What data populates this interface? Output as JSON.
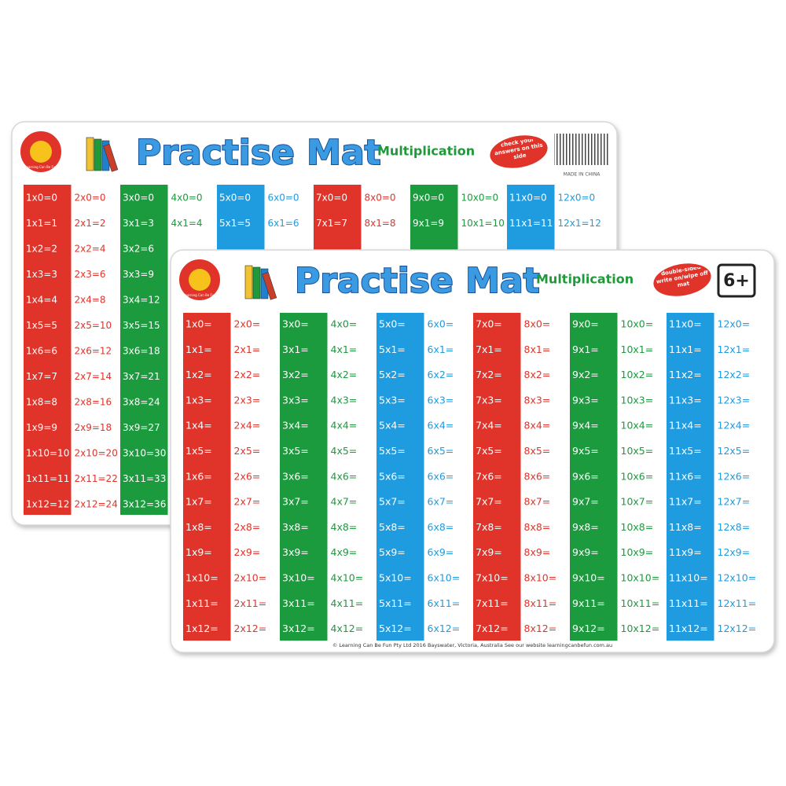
{
  "back_mat": {
    "logo": "Learning Can Be Fun",
    "title": "Practise Mat",
    "subtitle": "Multiplication",
    "badge": "check your answers on this side",
    "made_in": "MADE IN CHINA",
    "columns": [
      [
        "1x0=0",
        "1x1=1",
        "1x2=2",
        "1x3=3",
        "1x4=4",
        "1x5=5",
        "1x6=6",
        "1x7=7",
        "1x8=8",
        "1x9=9",
        "1x10=10",
        "1x11=11",
        "1x12=12"
      ],
      [
        "2x0=0",
        "2x1=2",
        "2x2=4",
        "2x3=6",
        "2x4=8",
        "2x5=10",
        "2x6=12",
        "2x7=14",
        "2x8=16",
        "2x9=18",
        "2x10=20",
        "2x11=22",
        "2x12=24"
      ],
      [
        "3x0=0",
        "3x1=3",
        "3x2=6",
        "3x3=9",
        "3x4=12",
        "3x5=15",
        "3x6=18",
        "3x7=21",
        "3x8=24",
        "3x9=27",
        "3x10=30",
        "3x11=33",
        "3x12=36"
      ],
      [
        "4x0=0",
        "4x1=4"
      ],
      [
        "5x0=0",
        "5x1=5"
      ],
      [
        "6x0=0",
        "6x1=6"
      ],
      [
        "7x0=0",
        "7x1=7"
      ],
      [
        "8x0=0",
        "8x1=8"
      ],
      [
        "9x0=0",
        "9x1=9"
      ],
      [
        "10x0=0",
        "10x1=10"
      ],
      [
        "11x0=0",
        "11x1=11"
      ],
      [
        "12x0=0",
        "12x1=12"
      ]
    ]
  },
  "front_mat": {
    "logo": "Learning Can Be Fun",
    "title": "Practise Mat",
    "subtitle": "Multiplication",
    "badge": "double-sided write on/wipe off mat",
    "age": "6+",
    "footer": "© Learning Can Be Fun Pty Ltd 2016 Bayswater, Victoria, Australia See our website learningcanbefun.com.au",
    "columns": [
      [
        "1x0=",
        "1x1=",
        "1x2=",
        "1x3=",
        "1x4=",
        "1x5=",
        "1x6=",
        "1x7=",
        "1x8=",
        "1x9=",
        "1x10=",
        "1x11=",
        "1x12="
      ],
      [
        "2x0=",
        "2x1=",
        "2x2=",
        "2x3=",
        "2x4=",
        "2x5=",
        "2x6=",
        "2x7=",
        "2x8=",
        "2x9=",
        "2x10=",
        "2x11=",
        "2x12="
      ],
      [
        "3x0=",
        "3x1=",
        "3x2=",
        "3x3=",
        "3x4=",
        "3x5=",
        "3x6=",
        "3x7=",
        "3x8=",
        "3x9=",
        "3x10=",
        "3x11=",
        "3x12="
      ],
      [
        "4x0=",
        "4x1=",
        "4x2=",
        "4x3=",
        "4x4=",
        "4x5=",
        "4x6=",
        "4x7=",
        "4x8=",
        "4x9=",
        "4x10=",
        "4x11=",
        "4x12="
      ],
      [
        "5x0=",
        "5x1=",
        "5x2=",
        "5x3=",
        "5x4=",
        "5x5=",
        "5x6=",
        "5x7=",
        "5x8=",
        "5x9=",
        "5x10=",
        "5x11=",
        "5x12="
      ],
      [
        "6x0=",
        "6x1=",
        "6x2=",
        "6x3=",
        "6x4=",
        "6x5=",
        "6x6=",
        "6x7=",
        "6x8=",
        "6x9=",
        "6x10=",
        "6x11=",
        "6x12="
      ],
      [
        "7x0=",
        "7x1=",
        "7x2=",
        "7x3=",
        "7x4=",
        "7x5=",
        "7x6=",
        "7x7=",
        "7x8=",
        "7x9=",
        "7x10=",
        "7x11=",
        "7x12="
      ],
      [
        "8x0=",
        "8x1=",
        "8x2=",
        "8x3=",
        "8x4=",
        "8x5=",
        "8x6=",
        "8x7=",
        "8x8=",
        "8x9=",
        "8x10=",
        "8x11=",
        "8x12="
      ],
      [
        "9x0=",
        "9x1=",
        "9x2=",
        "9x3=",
        "9x4=",
        "9x5=",
        "9x6=",
        "9x7=",
        "9x8=",
        "9x9=",
        "9x10=",
        "9x11=",
        "9x12="
      ],
      [
        "10x0=",
        "10x1=",
        "10x2=",
        "10x3=",
        "10x4=",
        "10x5=",
        "10x6=",
        "10x7=",
        "10x8=",
        "10x9=",
        "10x10=",
        "10x11=",
        "10x12="
      ],
      [
        "11x0=",
        "11x1=",
        "11x2=",
        "11x3=",
        "11x4=",
        "11x5=",
        "11x6=",
        "11x7=",
        "11x8=",
        "11x9=",
        "11x10=",
        "11x11=",
        "11x12="
      ],
      [
        "12x0=",
        "12x1=",
        "12x2=",
        "12x3=",
        "12x4=",
        "12x5=",
        "12x6=",
        "12x7=",
        "12x8=",
        "12x9=",
        "12x10=",
        "12x11=",
        "12x12="
      ]
    ]
  }
}
